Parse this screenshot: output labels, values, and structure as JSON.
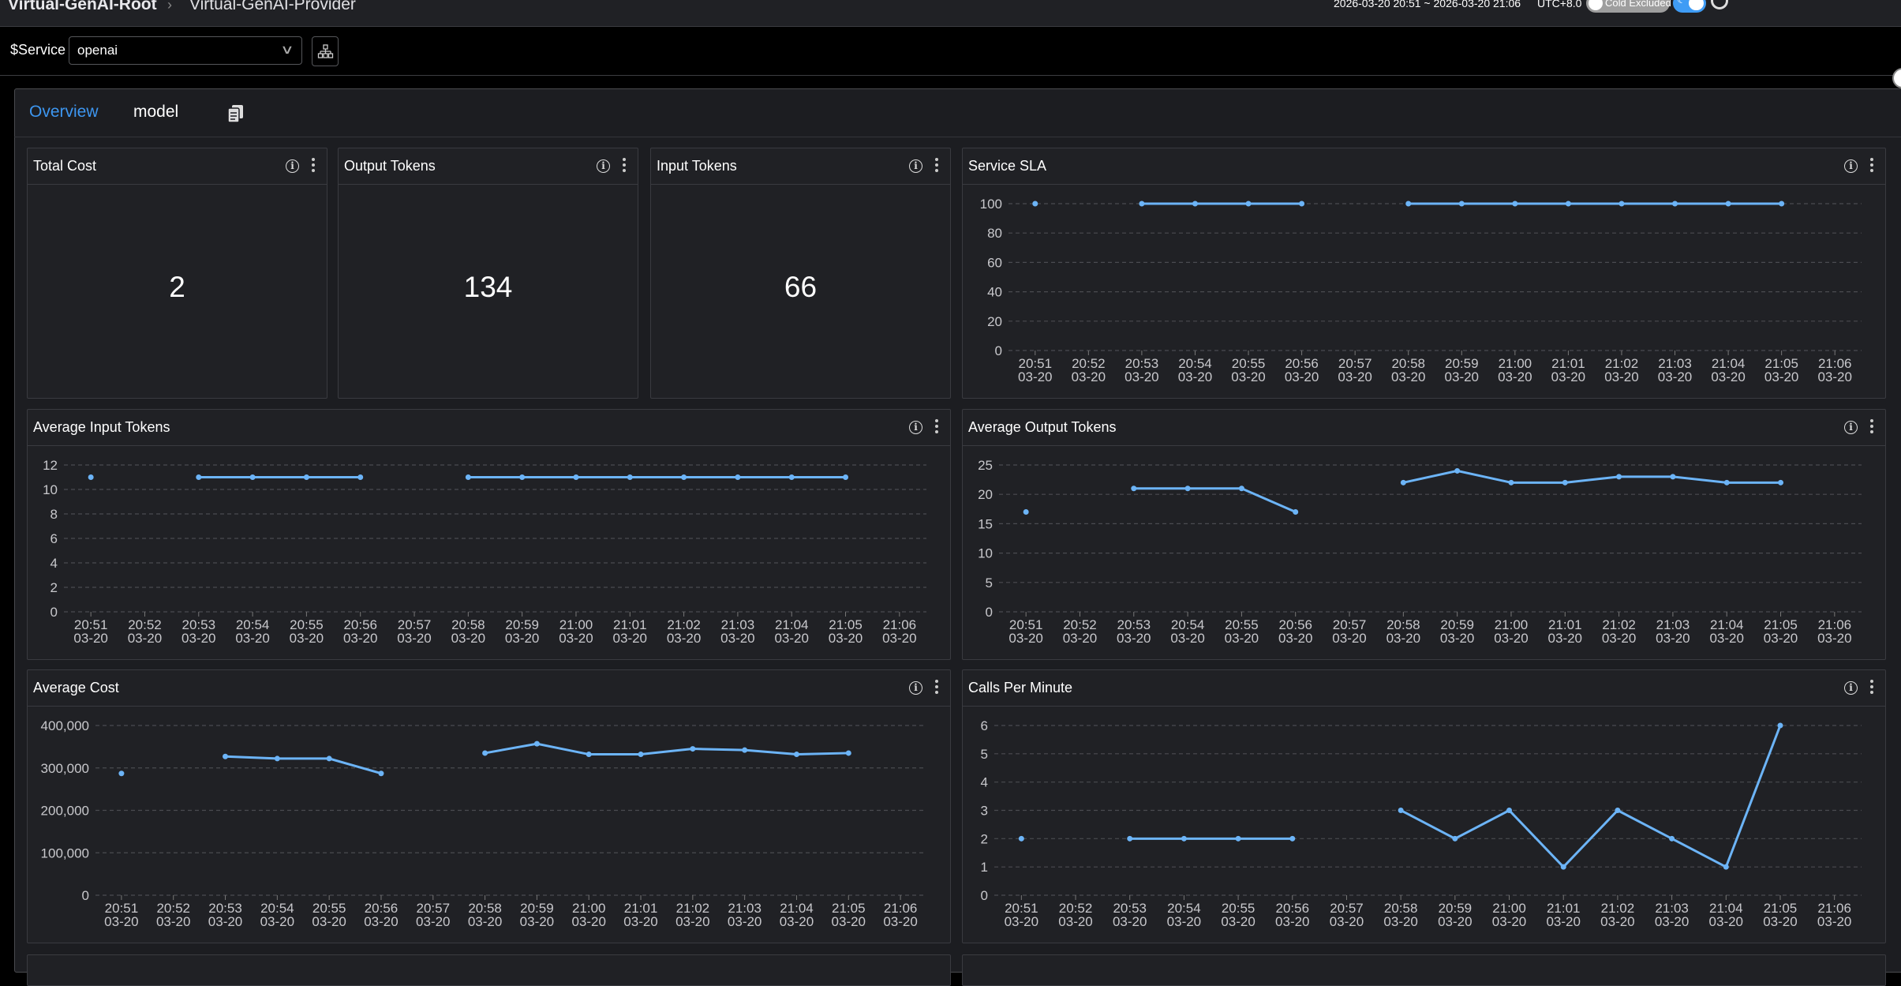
{
  "breadcrumb": {
    "root": "Virtual-GenAI-Root",
    "current": "Virtual-GenAI-Provider"
  },
  "time_range": "2026-03-20 20:51 ~ 2026-03-20 21:06",
  "timezone": "UTC+8.0",
  "cold_toggle": {
    "label": "Cold Excluded",
    "on": false
  },
  "theme_toggle": {
    "icon": "moon-icon",
    "on": true
  },
  "service": {
    "label": "$Service",
    "value": "openai"
  },
  "tabs": [
    {
      "label": "Overview",
      "active": true
    },
    {
      "label": "model",
      "active": false
    }
  ],
  "stats": [
    {
      "title": "Total Cost",
      "value": "2"
    },
    {
      "title": "Output Tokens",
      "value": "134"
    },
    {
      "title": "Input Tokens",
      "value": "66"
    }
  ],
  "colors": {
    "accent": "#3d96f0",
    "series": "#6cb4f7",
    "panel_bg": "#202125"
  },
  "chart_data": [
    {
      "type": "line",
      "title": "Service SLA",
      "x": [
        "20:51",
        "20:52",
        "20:53",
        "20:54",
        "20:55",
        "20:56",
        "20:57",
        "20:58",
        "20:59",
        "21:00",
        "21:01",
        "21:02",
        "21:03",
        "21:04",
        "21:05",
        "21:06"
      ],
      "x_date": "03-20",
      "yticks": [
        "0",
        "20",
        "40",
        "60",
        "80",
        "100"
      ],
      "ylim": [
        0,
        100
      ],
      "values": [
        100,
        null,
        100,
        100,
        100,
        100,
        null,
        100,
        100,
        100,
        100,
        100,
        100,
        100,
        100,
        null
      ]
    },
    {
      "type": "line",
      "title": "Average Input Tokens",
      "x": [
        "20:51",
        "20:52",
        "20:53",
        "20:54",
        "20:55",
        "20:56",
        "20:57",
        "20:58",
        "20:59",
        "21:00",
        "21:01",
        "21:02",
        "21:03",
        "21:04",
        "21:05",
        "21:06"
      ],
      "x_date": "03-20",
      "yticks": [
        "0",
        "2",
        "4",
        "6",
        "8",
        "10",
        "12"
      ],
      "ylim": [
        0,
        12
      ],
      "values": [
        11,
        null,
        11,
        11,
        11,
        11,
        null,
        11,
        11,
        11,
        11,
        11,
        11,
        11,
        11,
        null
      ]
    },
    {
      "type": "line",
      "title": "Average Output Tokens",
      "x": [
        "20:51",
        "20:52",
        "20:53",
        "20:54",
        "20:55",
        "20:56",
        "20:57",
        "20:58",
        "20:59",
        "21:00",
        "21:01",
        "21:02",
        "21:03",
        "21:04",
        "21:05",
        "21:06"
      ],
      "x_date": "03-20",
      "yticks": [
        "0",
        "5",
        "10",
        "15",
        "20",
        "25"
      ],
      "ylim": [
        0,
        25
      ],
      "values": [
        17,
        null,
        21,
        21,
        21,
        17,
        null,
        22,
        24,
        22,
        22,
        23,
        23,
        22,
        22,
        null
      ]
    },
    {
      "type": "line",
      "title": "Average Cost",
      "x": [
        "20:51",
        "20:52",
        "20:53",
        "20:54",
        "20:55",
        "20:56",
        "20:57",
        "20:58",
        "20:59",
        "21:00",
        "21:01",
        "21:02",
        "21:03",
        "21:04",
        "21:05",
        "21:06"
      ],
      "x_date": "03-20",
      "yticks": [
        "0",
        "100,000",
        "200,000",
        "300,000",
        "400,000"
      ],
      "ylim": [
        0,
        400000
      ],
      "values": [
        287000,
        null,
        327000,
        322000,
        322000,
        287000,
        null,
        335000,
        357000,
        332000,
        332000,
        345000,
        342000,
        332000,
        335000,
        null
      ]
    },
    {
      "type": "line",
      "title": "Calls Per Minute",
      "x": [
        "20:51",
        "20:52",
        "20:53",
        "20:54",
        "20:55",
        "20:56",
        "20:57",
        "20:58",
        "20:59",
        "21:00",
        "21:01",
        "21:02",
        "21:03",
        "21:04",
        "21:05",
        "21:06"
      ],
      "x_date": "03-20",
      "yticks": [
        "0",
        "1",
        "2",
        "3",
        "4",
        "5",
        "6"
      ],
      "ylim": [
        0,
        6
      ],
      "values": [
        2,
        null,
        2,
        2,
        2,
        2,
        null,
        3,
        2,
        3,
        1,
        3,
        2,
        1,
        6,
        null
      ]
    }
  ]
}
